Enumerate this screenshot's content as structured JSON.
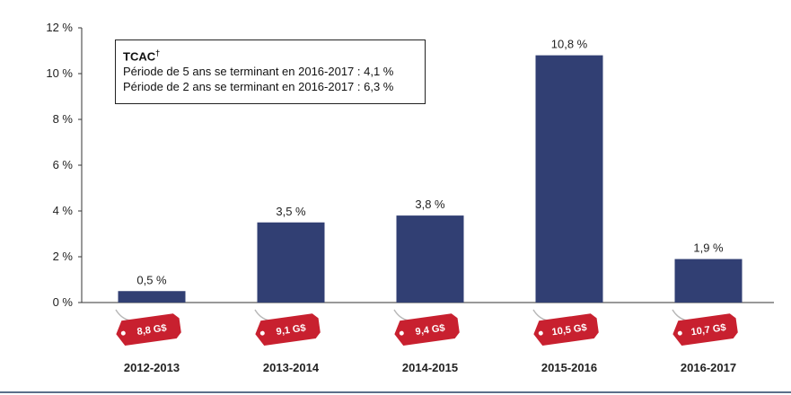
{
  "chart_data": {
    "type": "bar",
    "categories": [
      "2012-2013",
      "2013-2014",
      "2014-2015",
      "2015-2016",
      "2016-2017"
    ],
    "values": [
      0.5,
      3.5,
      3.8,
      10.8,
      1.9
    ],
    "value_labels": [
      "0,5 %",
      "3,5 %",
      "3,8 %",
      "10,8 %",
      "1,9 %"
    ],
    "tag_labels": [
      "8,8 G$",
      "9,1 G$",
      "9,4 G$",
      "10,5 G$",
      "10,7 G$"
    ],
    "ylim": [
      0,
      12
    ],
    "yticks": [
      0,
      2,
      4,
      6,
      8,
      10,
      12
    ],
    "ytick_labels": [
      "0 %",
      "2 %",
      "4 %",
      "6 %",
      "8 %",
      "10 %",
      "12 %"
    ],
    "bar_color": "#313f73",
    "tag_color": "#c8202f",
    "grid": false
  },
  "annotation": {
    "title": "TCAC",
    "title_mark": "†",
    "line1": "Période de 5 ans se terminant en 2016-2017 : 4,1 %",
    "line2": "Période de 2 ans se terminant en 2016-2017 : 6,3 %"
  }
}
